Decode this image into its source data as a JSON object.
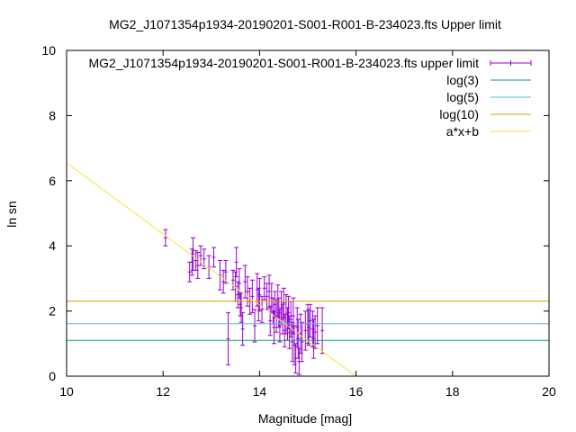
{
  "chart_data": {
    "type": "scatter",
    "title": "MG2_J1071354p1934-20190201-S001-R001-B-234023.fts Upper limit",
    "xlabel": "Magnitude [mag]",
    "ylabel": "ln sn",
    "xlim": [
      10,
      20
    ],
    "ylim": [
      0,
      10
    ],
    "xticks": [
      "10",
      "12",
      "14",
      "16",
      "18",
      "20"
    ],
    "yticks": [
      "0",
      "2",
      "4",
      "6",
      "8",
      "10"
    ],
    "grid": false,
    "legend_position": "top-right",
    "series": [
      {
        "name": "MG2_J1071354p1934-20190201-S001-R001-B-234023.fts upper limit",
        "style": "errorbars",
        "color": "#9400d3",
        "points": [
          [
            12.05,
            4.25,
            0.25
          ],
          [
            12.55,
            3.2,
            0.3
          ],
          [
            12.6,
            3.5,
            0.4
          ],
          [
            12.62,
            3.75,
            0.5
          ],
          [
            12.68,
            3.55,
            0.3
          ],
          [
            12.72,
            3.4,
            0.4
          ],
          [
            12.78,
            3.7,
            0.3
          ],
          [
            12.85,
            3.6,
            0.3
          ],
          [
            12.95,
            3.35,
            0.35
          ],
          [
            13.05,
            3.65,
            0.3
          ],
          [
            13.18,
            3.1,
            0.45
          ],
          [
            13.25,
            2.9,
            0.35
          ],
          [
            13.3,
            3.2,
            0.35
          ],
          [
            13.35,
            1.15,
            0.8
          ],
          [
            13.45,
            2.95,
            0.3
          ],
          [
            13.5,
            2.75,
            0.45
          ],
          [
            13.52,
            3.5,
            0.45
          ],
          [
            13.55,
            2.5,
            0.4
          ],
          [
            13.58,
            2.85,
            0.45
          ],
          [
            13.6,
            2.2,
            0.35
          ],
          [
            13.62,
            2.1,
            0.45
          ],
          [
            13.65,
            1.45,
            0.5
          ],
          [
            13.7,
            2.9,
            0.5
          ],
          [
            13.75,
            2.6,
            0.45
          ],
          [
            13.8,
            2.3,
            0.4
          ],
          [
            13.85,
            2.45,
            0.5
          ],
          [
            13.9,
            1.55,
            0.5
          ],
          [
            13.95,
            2.65,
            0.5
          ],
          [
            13.98,
            2.2,
            0.5
          ],
          [
            14.0,
            2.5,
            0.5
          ],
          [
            14.05,
            2.05,
            0.4
          ],
          [
            14.1,
            2.7,
            0.35
          ],
          [
            14.15,
            2.45,
            0.4
          ],
          [
            14.2,
            2.6,
            0.5
          ],
          [
            14.22,
            1.7,
            0.45
          ],
          [
            14.25,
            2.4,
            0.45
          ],
          [
            14.28,
            2.0,
            0.4
          ],
          [
            14.3,
            1.5,
            0.5
          ],
          [
            14.32,
            2.2,
            0.4
          ],
          [
            14.35,
            1.85,
            0.5
          ],
          [
            14.38,
            2.3,
            0.5
          ],
          [
            14.4,
            1.95,
            0.45
          ],
          [
            14.42,
            1.55,
            0.5
          ],
          [
            14.45,
            2.1,
            0.5
          ],
          [
            14.48,
            1.75,
            0.45
          ],
          [
            14.5,
            2.25,
            0.45
          ],
          [
            14.52,
            1.4,
            0.5
          ],
          [
            14.55,
            1.9,
            0.6
          ],
          [
            14.58,
            1.6,
            0.5
          ],
          [
            14.6,
            1.95,
            0.5
          ],
          [
            14.62,
            1.35,
            0.5
          ],
          [
            14.65,
            1.75,
            0.55
          ],
          [
            14.68,
            1.05,
            0.6
          ],
          [
            14.7,
            1.85,
            0.55
          ],
          [
            14.72,
            0.95,
            0.6
          ],
          [
            14.75,
            0.55,
            0.45
          ],
          [
            14.78,
            1.5,
            0.6
          ],
          [
            14.8,
            1.15,
            0.6
          ],
          [
            14.82,
            0.45,
            0.4
          ],
          [
            14.85,
            1.3,
            0.6
          ],
          [
            14.88,
            1.05,
            0.6
          ],
          [
            14.95,
            1.4,
            0.6
          ],
          [
            15.0,
            1.6,
            0.6
          ],
          [
            15.02,
            1.5,
            0.55
          ],
          [
            15.05,
            1.7,
            0.5
          ],
          [
            15.1,
            1.45,
            0.55
          ],
          [
            15.12,
            1.15,
            0.6
          ],
          [
            15.15,
            1.35,
            0.5
          ],
          [
            15.2,
            1.55,
            0.55
          ],
          [
            15.3,
            1.4,
            0.7
          ]
        ]
      },
      {
        "name": "log(3)",
        "style": "hline",
        "color": "#009e73",
        "y": 1.0986
      },
      {
        "name": "log(5)",
        "style": "hline",
        "color": "#56b4e9",
        "y": 1.6094
      },
      {
        "name": "log(10)",
        "style": "hline",
        "color": "#e69f00",
        "y": 2.3026
      },
      {
        "name": "a*x+b",
        "style": "fit-line",
        "color": "#f0e442",
        "x": [
          10,
          16
        ],
        "y": [
          6.55,
          0.0
        ]
      }
    ]
  }
}
